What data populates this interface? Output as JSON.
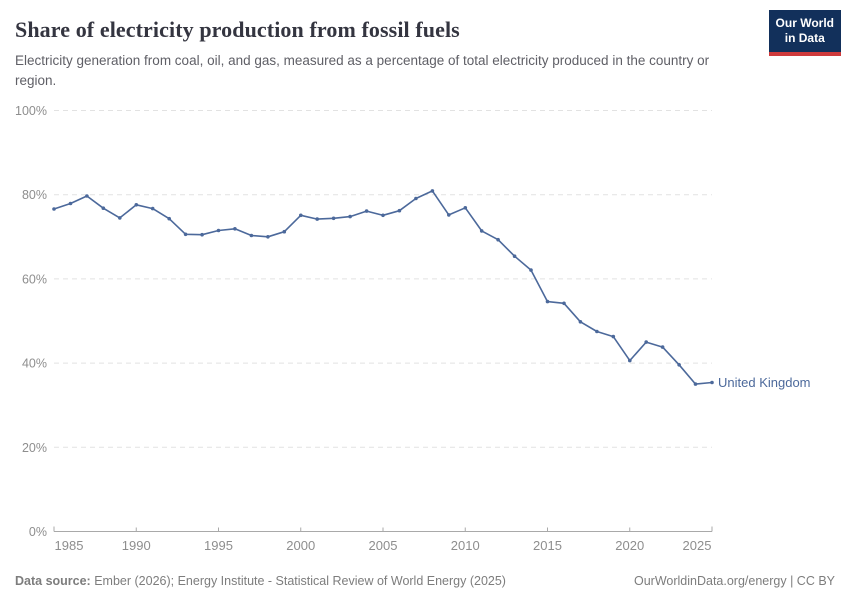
{
  "header": {
    "title": "Share of electricity production from fossil fuels",
    "subtitle": "Electricity generation from coal, oil, and gas, measured as a percentage of total electricity produced in the country or region.",
    "logo": {
      "line1": "Our World",
      "line2": "in Data",
      "bg_color": "#12305b",
      "accent_color": "#cf3a3c",
      "css": "background:#12305b;border-bottom:4px solid #cf3a3c"
    }
  },
  "chart_data": {
    "type": "line",
    "title": "Share of electricity production from fossil fuels",
    "unit": "%",
    "xlabel": "",
    "ylabel": "",
    "xlim": [
      1985,
      2025
    ],
    "ylim": [
      0,
      100
    ],
    "xticks": [
      1985,
      1990,
      1995,
      2000,
      2005,
      2010,
      2015,
      2020,
      2025
    ],
    "yticks": [
      0,
      20,
      40,
      60,
      80,
      100
    ],
    "ytick_suffix": "%",
    "grid": "horizontal-dashed",
    "legend_position": "line-end",
    "x": [
      1985,
      1986,
      1987,
      1988,
      1989,
      1990,
      1991,
      1992,
      1993,
      1994,
      1995,
      1996,
      1997,
      1998,
      1999,
      2000,
      2001,
      2002,
      2003,
      2004,
      2005,
      2006,
      2007,
      2008,
      2009,
      2010,
      2011,
      2012,
      2013,
      2014,
      2015,
      2016,
      2017,
      2018,
      2019,
      2020,
      2021,
      2022,
      2023,
      2024,
      2025
    ],
    "series": [
      {
        "name": "United Kingdom",
        "color": "#4c699b",
        "values": [
          76.6,
          77.9,
          79.7,
          76.8,
          74.5,
          77.6,
          76.7,
          74.3,
          70.6,
          70.5,
          71.5,
          71.9,
          70.3,
          70.0,
          71.2,
          75.1,
          74.2,
          74.4,
          74.8,
          76.1,
          75.1,
          76.2,
          79.1,
          80.9,
          75.2,
          76.9,
          71.4,
          69.3,
          65.4,
          62.1,
          54.6,
          54.2,
          49.8,
          47.5,
          46.3,
          40.6,
          45.0,
          43.8,
          39.6,
          35.0,
          35.4
        ]
      }
    ]
  },
  "colors": {
    "line": "#4c699b",
    "grid": "#e2e2e2",
    "axis": "#a9a9a9",
    "axis_text": "#8e8e8e",
    "title_text": "#343540",
    "subtitle_text": "#5f5f66",
    "footer_text": "#7d7d7d"
  },
  "footer": {
    "source_label": "Data source:",
    "source_text": "Ember (2026); Energy Institute - Statistical Review of World Energy (2025)",
    "rights": "OurWorldinData.org/energy | CC BY"
  }
}
